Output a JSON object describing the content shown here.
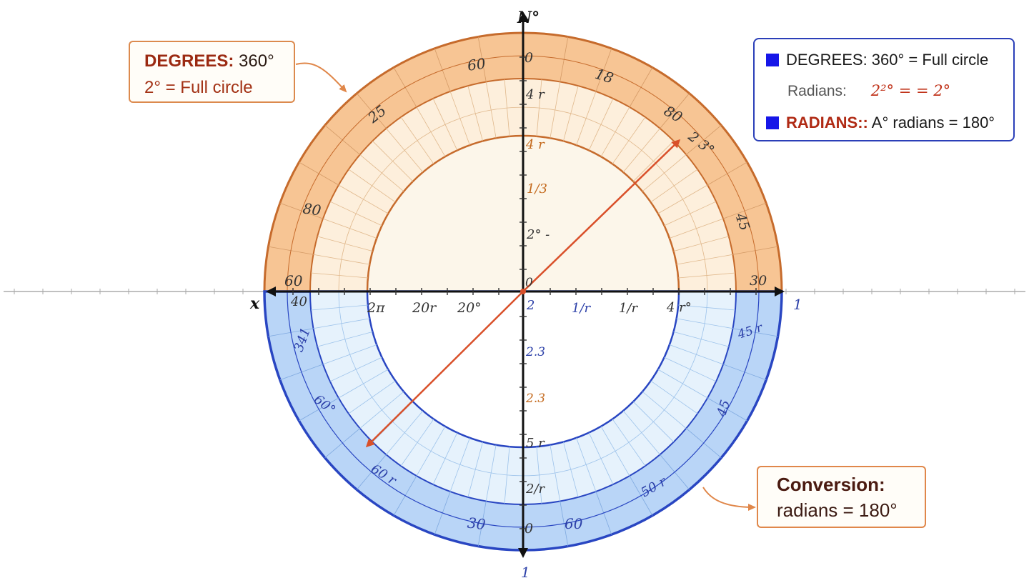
{
  "axes": {
    "north_label": "N°",
    "x_label": "x",
    "right_label": "1",
    "bottom_label": "1"
  },
  "callouts": {
    "degrees": {
      "line1_bold": "DEGREES:",
      "line1_rest": " 360°",
      "line2": "2° = Full circle"
    },
    "conversion": {
      "line1": "Conversion:",
      "line2": "radians = 180°"
    }
  },
  "legend": {
    "row1": "DEGREES: 360° = Full circle",
    "row2_label": "Radians:",
    "row2_value": "2²° = = 2°",
    "row3_bold": "RADIANS::",
    "row3_rest": " A° radians = 180°"
  },
  "vertical_axis_labels": [
    "0",
    "4 r",
    "4 r",
    "1/3",
    "2° -",
    "0",
    "2",
    "2.3",
    "2.3",
    "5 r",
    "2/r",
    "0"
  ],
  "horizontal_axis_labels": [
    "40",
    "2π",
    "20r",
    "20°",
    "1/r",
    "1/r",
    "4 r°"
  ],
  "upper_ring_labels": [
    "60",
    "25",
    "80",
    "60",
    "18",
    "80",
    "2 3°",
    "45",
    "30"
  ],
  "lower_ring_labels": [
    "341",
    "60°",
    "60 r",
    "30",
    "60",
    "50 r",
    "45",
    "45 r"
  ],
  "colors": {
    "degrees_band": "#f7c594",
    "degrees_inner": "#fdefdc",
    "degrees_circle": "#fcf6ea",
    "degrees_stroke": "#c66b2c",
    "radians_band": "#b9d5f7",
    "radians_inner": "#e6f2fc",
    "radians_stroke": "#2946c2",
    "arrow": "#d9502a",
    "legend_swatch": "#1616e8"
  }
}
